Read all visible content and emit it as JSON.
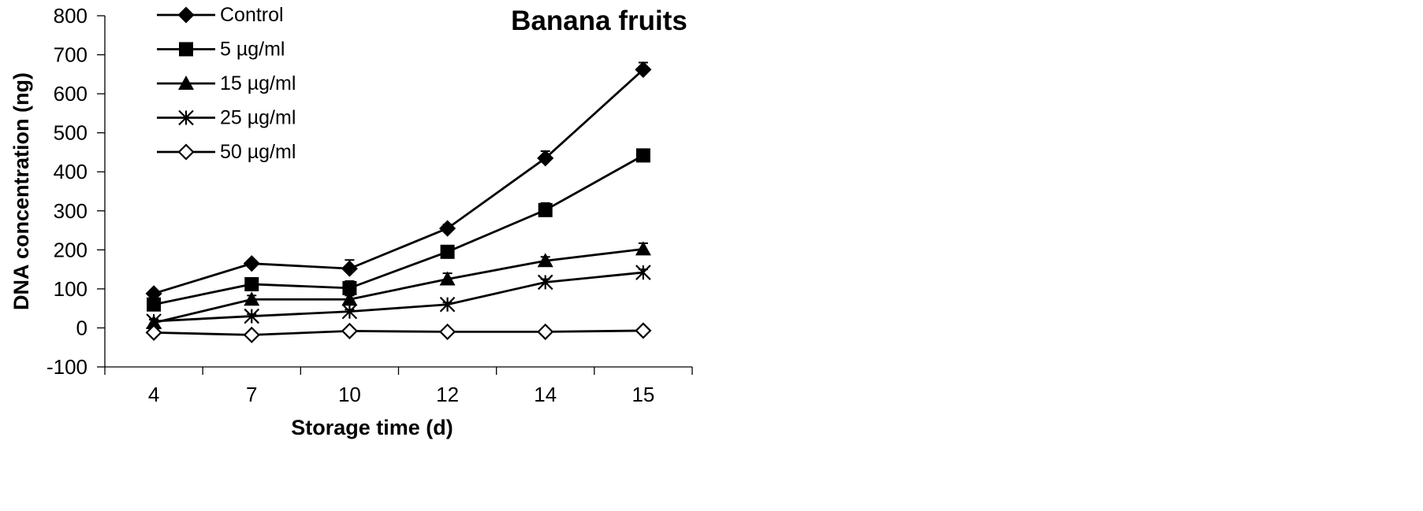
{
  "chart_data": {
    "type": "line",
    "title": "Banana fruits",
    "xlabel": "Storage time (d)",
    "ylabel": "DNA concentration (ng)",
    "categories": [
      "4",
      "7",
      "10",
      "12",
      "14",
      "15"
    ],
    "ylim": [
      -100,
      800
    ],
    "yticks": [
      "800",
      "700",
      "600",
      "500",
      "400",
      "300",
      "200",
      "100",
      "0",
      "-100"
    ],
    "ytick_values": [
      800,
      700,
      600,
      500,
      400,
      300,
      200,
      100,
      0,
      -100
    ],
    "grid": false,
    "legend_position": "top-left",
    "series": [
      {
        "name": "Control",
        "marker": "diamond-filled",
        "values": [
          88,
          165,
          152,
          255,
          435,
          662
        ],
        "errors": [
          8,
          8,
          22,
          10,
          18,
          18
        ]
      },
      {
        "name": "5 µg/ml",
        "marker": "square-filled",
        "values": [
          60,
          112,
          102,
          195,
          302,
          442
        ],
        "errors": [
          8,
          8,
          18,
          10,
          18,
          10
        ]
      },
      {
        "name": "15 µg/ml",
        "marker": "triangle-filled",
        "values": [
          13,
          73,
          73,
          125,
          172,
          202
        ],
        "errors": [
          8,
          10,
          10,
          15,
          10,
          15
        ]
      },
      {
        "name": "25 µg/ml",
        "marker": "asterisk",
        "values": [
          17,
          30,
          42,
          60,
          117,
          142
        ],
        "errors": [
          5,
          5,
          5,
          5,
          8,
          8
        ]
      },
      {
        "name": "50 µg/ml",
        "marker": "diamond-open",
        "values": [
          -12,
          -18,
          -8,
          -10,
          -10,
          -7
        ],
        "errors": [
          3,
          3,
          3,
          3,
          3,
          3
        ]
      }
    ]
  }
}
